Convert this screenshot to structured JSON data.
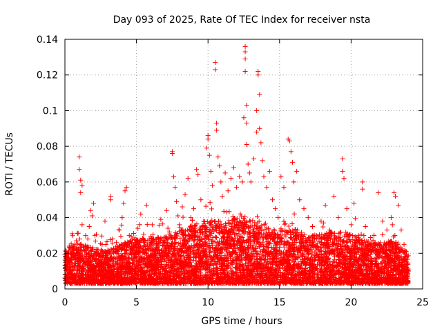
{
  "chart_data": {
    "type": "scatter",
    "title": "Day 093 of 2025, Rate Of TEC Index for receiver nsta",
    "xlabel": "GPS time / hours",
    "ylabel": "ROTI / TECUs",
    "xlim": [
      0,
      25
    ],
    "ylim": [
      0,
      0.14
    ],
    "xticks": [
      0,
      5,
      10,
      15,
      20,
      25
    ],
    "xtick_labels": [
      "0",
      "5",
      "10",
      "15",
      "20",
      "25"
    ],
    "yticks": [
      0,
      0.02,
      0.04,
      0.06,
      0.08,
      0.1,
      0.12,
      0.14
    ],
    "ytick_labels": [
      "0",
      "0.02",
      "0.04",
      "0.06",
      "0.08",
      "0.1",
      "0.12",
      "0.14"
    ],
    "grid": true,
    "marker": "+",
    "color": "#ff0000",
    "series": [
      {
        "name": "ROTI",
        "points": [
          [
            0.0,
            0.013
          ],
          [
            0.1,
            0.018
          ],
          [
            0.2,
            0.011
          ],
          [
            0.3,
            0.024
          ],
          [
            0.4,
            0.015
          ],
          [
            0.5,
            0.031
          ],
          [
            0.6,
            0.02
          ],
          [
            0.7,
            0.012
          ],
          [
            0.8,
            0.027
          ],
          [
            0.9,
            0.016
          ],
          [
            1.0,
            0.074
          ],
          [
            1.0,
            0.067
          ],
          [
            1.1,
            0.061
          ],
          [
            1.1,
            0.054
          ],
          [
            1.2,
            0.058
          ],
          [
            1.2,
            0.036
          ],
          [
            1.3,
            0.022
          ],
          [
            1.4,
            0.014
          ],
          [
            1.5,
            0.019
          ],
          [
            1.6,
            0.028
          ],
          [
            1.7,
            0.035
          ],
          [
            1.8,
            0.044
          ],
          [
            1.9,
            0.041
          ],
          [
            2.0,
            0.048
          ],
          [
            2.1,
            0.03
          ],
          [
            2.2,
            0.021
          ],
          [
            2.4,
            0.015
          ],
          [
            2.6,
            0.025
          ],
          [
            2.8,
            0.038
          ],
          [
            3.0,
            0.012
          ],
          [
            3.1,
            0.009
          ],
          [
            3.2,
            0.052
          ],
          [
            3.2,
            0.05
          ],
          [
            3.4,
            0.017
          ],
          [
            3.6,
            0.026
          ],
          [
            3.8,
            0.033
          ],
          [
            4.0,
            0.04
          ],
          [
            4.1,
            0.048
          ],
          [
            4.2,
            0.055
          ],
          [
            4.3,
            0.057
          ],
          [
            4.5,
            0.03
          ],
          [
            4.7,
            0.022
          ],
          [
            4.9,
            0.018
          ],
          [
            5.1,
            0.034
          ],
          [
            5.3,
            0.042
          ],
          [
            5.5,
            0.028
          ],
          [
            5.7,
            0.047
          ],
          [
            5.9,
            0.024
          ],
          [
            6.1,
            0.036
          ],
          [
            6.3,
            0.016
          ],
          [
            6.5,
            0.029
          ],
          [
            6.7,
            0.039
          ],
          [
            6.9,
            0.021
          ],
          [
            7.1,
            0.044
          ],
          [
            7.3,
            0.032
          ],
          [
            7.5,
            0.076
          ],
          [
            7.5,
            0.077
          ],
          [
            7.6,
            0.063
          ],
          [
            7.7,
            0.057
          ],
          [
            7.8,
            0.049
          ],
          [
            7.9,
            0.041
          ],
          [
            8.0,
            0.036
          ],
          [
            8.2,
            0.046
          ],
          [
            8.4,
            0.053
          ],
          [
            8.6,
            0.062
          ],
          [
            8.8,
            0.04
          ],
          [
            9.0,
            0.045
          ],
          [
            9.2,
            0.067
          ],
          [
            9.3,
            0.064
          ],
          [
            9.5,
            0.05
          ],
          [
            9.7,
            0.038
          ],
          [
            9.9,
            0.079
          ],
          [
            10.0,
            0.084
          ],
          [
            10.0,
            0.086
          ],
          [
            10.1,
            0.075
          ],
          [
            10.2,
            0.066
          ],
          [
            10.3,
            0.058
          ],
          [
            10.5,
            0.127
          ],
          [
            10.5,
            0.123
          ],
          [
            10.6,
            0.093
          ],
          [
            10.6,
            0.089
          ],
          [
            10.7,
            0.074
          ],
          [
            10.8,
            0.069
          ],
          [
            10.9,
            0.06
          ],
          [
            11.0,
            0.052
          ],
          [
            11.2,
            0.065
          ],
          [
            11.4,
            0.055
          ],
          [
            11.6,
            0.062
          ],
          [
            11.8,
            0.068
          ],
          [
            12.0,
            0.057
          ],
          [
            12.2,
            0.063
          ],
          [
            12.4,
            0.06
          ],
          [
            12.5,
            0.096
          ],
          [
            12.6,
            0.136
          ],
          [
            12.6,
            0.133
          ],
          [
            12.6,
            0.129
          ],
          [
            12.6,
            0.122
          ],
          [
            12.7,
            0.103
          ],
          [
            12.7,
            0.093
          ],
          [
            12.7,
            0.081
          ],
          [
            12.8,
            0.07
          ],
          [
            12.9,
            0.065
          ],
          [
            13.0,
            0.06
          ],
          [
            13.2,
            0.073
          ],
          [
            13.4,
            0.088
          ],
          [
            13.4,
            0.1
          ],
          [
            13.5,
            0.122
          ],
          [
            13.5,
            0.12
          ],
          [
            13.6,
            0.109
          ],
          [
            13.6,
            0.09
          ],
          [
            13.7,
            0.082
          ],
          [
            13.8,
            0.072
          ],
          [
            13.9,
            0.063
          ],
          [
            14.1,
            0.057
          ],
          [
            14.3,
            0.066
          ],
          [
            14.5,
            0.05
          ],
          [
            14.7,
            0.045
          ],
          [
            14.9,
            0.04
          ],
          [
            15.1,
            0.063
          ],
          [
            15.3,
            0.057
          ],
          [
            15.6,
            0.084
          ],
          [
            15.7,
            0.083
          ],
          [
            15.8,
            0.077
          ],
          [
            15.9,
            0.071
          ],
          [
            16.0,
            0.06
          ],
          [
            16.2,
            0.066
          ],
          [
            16.4,
            0.05
          ],
          [
            16.7,
            0.045
          ],
          [
            17.0,
            0.04
          ],
          [
            17.3,
            0.035
          ],
          [
            17.6,
            0.03
          ],
          [
            17.9,
            0.038
          ],
          [
            18.2,
            0.047
          ],
          [
            18.5,
            0.033
          ],
          [
            18.8,
            0.052
          ],
          [
            19.1,
            0.04
          ],
          [
            19.4,
            0.073
          ],
          [
            19.4,
            0.066
          ],
          [
            19.5,
            0.062
          ],
          [
            19.7,
            0.045
          ],
          [
            20.0,
            0.036
          ],
          [
            20.2,
            0.048
          ],
          [
            20.5,
            0.03
          ],
          [
            20.8,
            0.06
          ],
          [
            20.8,
            0.056
          ],
          [
            21.0,
            0.035
          ],
          [
            21.3,
            0.025
          ],
          [
            21.6,
            0.03
          ],
          [
            21.9,
            0.054
          ],
          [
            22.2,
            0.038
          ],
          [
            22.5,
            0.033
          ],
          [
            22.8,
            0.04
          ],
          [
            23.0,
            0.054
          ],
          [
            23.1,
            0.052
          ],
          [
            23.3,
            0.047
          ],
          [
            23.5,
            0.033
          ],
          [
            23.7,
            0.025
          ],
          [
            23.8,
            0.018
          ],
          [
            23.9,
            0.012
          ],
          [
            24.0,
            0.01
          ]
        ]
      }
    ],
    "band": {
      "description": "dense background scatter of ROTI values across the day",
      "base_min": 0.003,
      "band_envelope": [
        [
          0.0,
          0.022
        ],
        [
          1.0,
          0.026
        ],
        [
          2.0,
          0.023
        ],
        [
          3.0,
          0.021
        ],
        [
          4.0,
          0.026
        ],
        [
          5.0,
          0.029
        ],
        [
          6.0,
          0.028
        ],
        [
          7.0,
          0.03
        ],
        [
          8.0,
          0.033
        ],
        [
          9.0,
          0.036
        ],
        [
          10.0,
          0.039
        ],
        [
          11.0,
          0.038
        ],
        [
          12.0,
          0.04
        ],
        [
          13.0,
          0.039
        ],
        [
          14.0,
          0.037
        ],
        [
          15.0,
          0.033
        ],
        [
          16.0,
          0.034
        ],
        [
          17.0,
          0.03
        ],
        [
          18.0,
          0.031
        ],
        [
          19.0,
          0.033
        ],
        [
          20.0,
          0.031
        ],
        [
          21.0,
          0.027
        ],
        [
          22.0,
          0.026
        ],
        [
          23.0,
          0.027
        ],
        [
          24.0,
          0.02
        ]
      ],
      "point_count": 6500
    }
  }
}
